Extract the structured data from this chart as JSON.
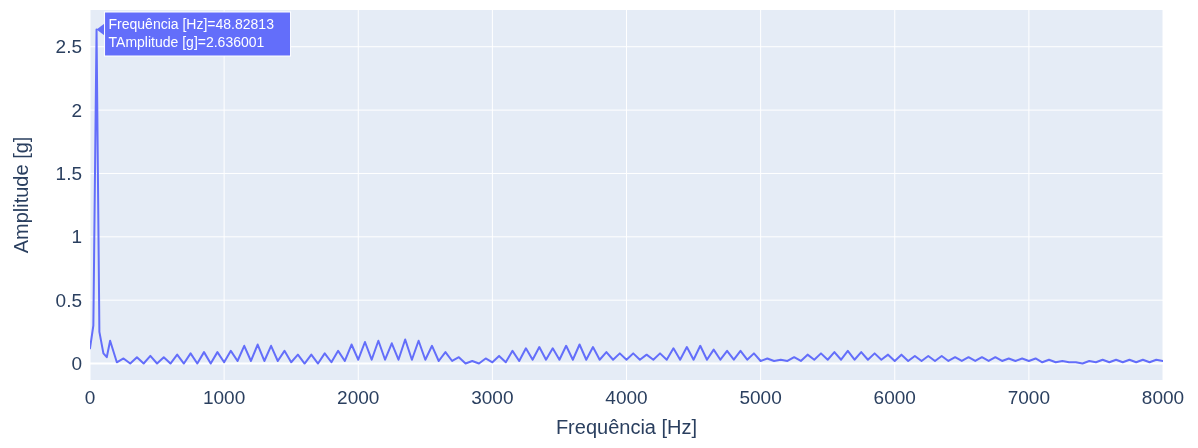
{
  "chart_data": {
    "type": "line",
    "xlabel": "Frequência [Hz]",
    "ylabel": "Amplitude [g]",
    "xlim": [
      0,
      8000
    ],
    "xticks": [
      0,
      1000,
      2000,
      3000,
      4000,
      5000,
      6000,
      7000,
      8000
    ],
    "ylim": [
      -0.13,
      2.79
    ],
    "yticks": [
      0,
      0.5,
      1,
      1.5,
      2,
      2.5
    ],
    "grid": true,
    "annotations": [
      {
        "text": "Frequência [Hz]=48.82813\nTAmplitude [g]=2.636001",
        "x": 48.82813,
        "y": 2.636001
      }
    ],
    "x": [
      0,
      25,
      48.82813,
      70,
      100,
      125,
      150,
      200,
      250,
      300,
      350,
      400,
      450,
      500,
      550,
      600,
      650,
      700,
      750,
      800,
      850,
      900,
      950,
      1000,
      1050,
      1100,
      1150,
      1200,
      1250,
      1300,
      1350,
      1400,
      1450,
      1500,
      1550,
      1600,
      1650,
      1700,
      1750,
      1800,
      1850,
      1900,
      1950,
      2000,
      2050,
      2100,
      2150,
      2200,
      2250,
      2300,
      2350,
      2400,
      2450,
      2500,
      2550,
      2600,
      2650,
      2700,
      2750,
      2800,
      2850,
      2900,
      2950,
      3000,
      3050,
      3100,
      3150,
      3200,
      3250,
      3300,
      3350,
      3400,
      3450,
      3500,
      3550,
      3600,
      3650,
      3700,
      3750,
      3800,
      3850,
      3900,
      3950,
      4000,
      4050,
      4100,
      4150,
      4200,
      4250,
      4300,
      4350,
      4400,
      4450,
      4500,
      4550,
      4600,
      4650,
      4700,
      4750,
      4800,
      4850,
      4900,
      4950,
      5000,
      5050,
      5100,
      5150,
      5200,
      5250,
      5300,
      5350,
      5400,
      5450,
      5500,
      5550,
      5600,
      5650,
      5700,
      5750,
      5800,
      5850,
      5900,
      5950,
      6000,
      6050,
      6100,
      6150,
      6200,
      6250,
      6300,
      6350,
      6400,
      6450,
      6500,
      6550,
      6600,
      6650,
      6700,
      6750,
      6800,
      6850,
      6900,
      6950,
      7000,
      7050,
      7100,
      7150,
      7200,
      7250,
      7300,
      7350,
      7400,
      7450,
      7500,
      7550,
      7600,
      7650,
      7700,
      7750,
      7800,
      7850,
      7900,
      7950,
      8000
    ],
    "series": [
      {
        "color": "#636efa",
        "values": [
          0.12,
          0.3,
          2.636001,
          0.25,
          0.08,
          0.05,
          0.18,
          0.01,
          0.04,
          0,
          0.05,
          0,
          0.06,
          0,
          0.05,
          0,
          0.07,
          0,
          0.08,
          0,
          0.09,
          0,
          0.09,
          0.01,
          0.1,
          0.02,
          0.14,
          0.02,
          0.15,
          0.02,
          0.14,
          0.02,
          0.1,
          0.01,
          0.07,
          0,
          0.07,
          0,
          0.08,
          0.01,
          0.1,
          0.02,
          0.15,
          0.03,
          0.17,
          0.03,
          0.18,
          0.03,
          0.16,
          0.03,
          0.19,
          0.03,
          0.18,
          0.03,
          0.14,
          0.02,
          0.09,
          0.02,
          0.05,
          0,
          0.02,
          0,
          0.04,
          0.01,
          0.06,
          0.01,
          0.1,
          0.02,
          0.12,
          0.03,
          0.13,
          0.03,
          0.12,
          0.03,
          0.14,
          0.03,
          0.15,
          0.03,
          0.13,
          0.03,
          0.09,
          0.03,
          0.08,
          0.03,
          0.08,
          0.03,
          0.07,
          0.03,
          0.08,
          0.03,
          0.12,
          0.03,
          0.13,
          0.03,
          0.14,
          0.03,
          0.11,
          0.03,
          0.1,
          0.03,
          0.1,
          0.03,
          0.08,
          0.02,
          0.04,
          0.02,
          0.03,
          0.02,
          0.05,
          0.02,
          0.07,
          0.03,
          0.08,
          0.03,
          0.09,
          0.03,
          0.1,
          0.03,
          0.09,
          0.03,
          0.08,
          0.03,
          0.07,
          0.02,
          0.07,
          0.02,
          0.06,
          0.02,
          0.06,
          0.02,
          0.06,
          0.02,
          0.05,
          0.02,
          0.05,
          0.02,
          0.05,
          0.02,
          0.05,
          0.02,
          0.04,
          0.02,
          0.04,
          0.02,
          0.04,
          0.01,
          0.03,
          0.01,
          0.02,
          0.01,
          0.01,
          0,
          0.02,
          0.01,
          0.03,
          0.01,
          0.03,
          0.01,
          0.03,
          0.01,
          0.03,
          0.01,
          0.03,
          0.02
        ]
      }
    ]
  }
}
